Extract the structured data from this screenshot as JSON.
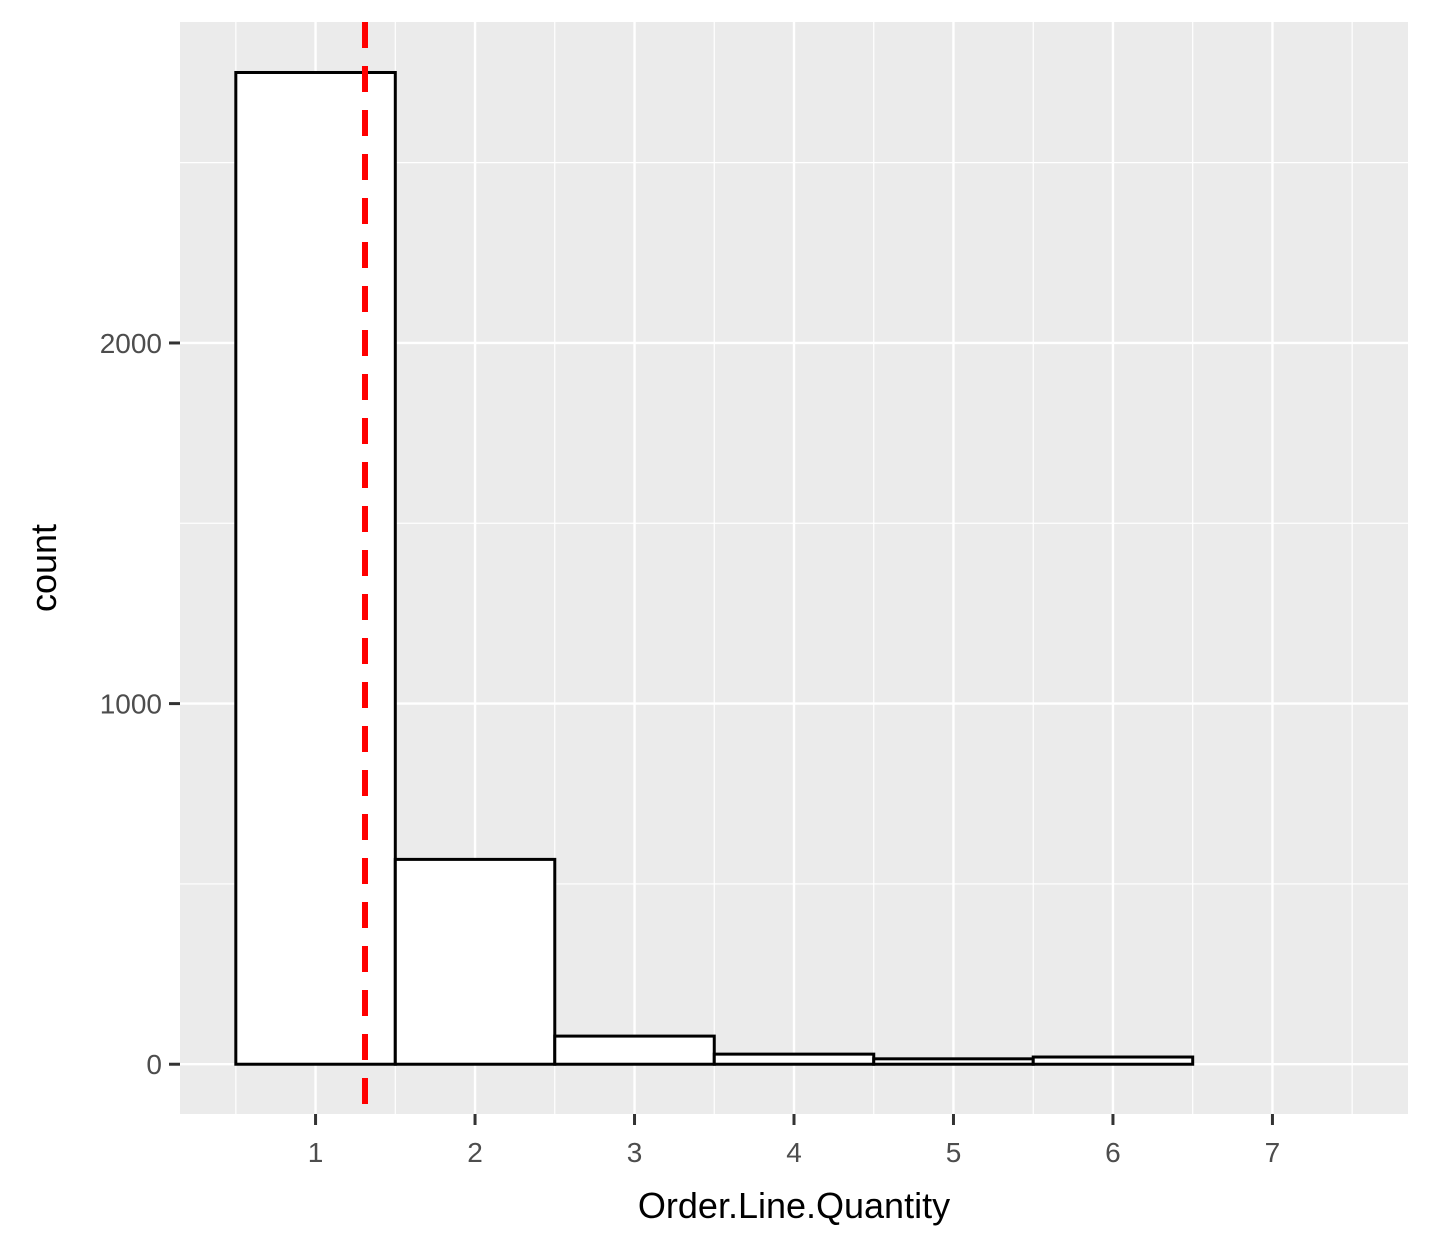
{
  "chart_data": {
    "type": "bar",
    "xlabel": "Order.Line.Quantity",
    "ylabel": "count",
    "x_ticks": [
      "1",
      "2",
      "3",
      "4",
      "5",
      "6",
      "7"
    ],
    "y_ticks": [
      "0",
      "1000",
      "2000"
    ],
    "x_range": [
      0.15,
      7.85
    ],
    "y_range": [
      -138,
      2890
    ],
    "bins": [
      {
        "x": 1,
        "count": 2750
      },
      {
        "x": 2,
        "count": 568
      },
      {
        "x": 3,
        "count": 78
      },
      {
        "x": 4,
        "count": 28
      },
      {
        "x": 5,
        "count": 15
      },
      {
        "x": 6,
        "count": 20
      },
      {
        "x": 7,
        "count": 0
      }
    ],
    "bin_width": 1,
    "mean_line": {
      "x": 1.31,
      "color": "#ff0000",
      "style": "dashed"
    },
    "bar_fill": "#ffffff",
    "bar_outline": "#000000",
    "panel_background": "#ebebeb",
    "grid_color": "#ffffff",
    "grid": true
  }
}
